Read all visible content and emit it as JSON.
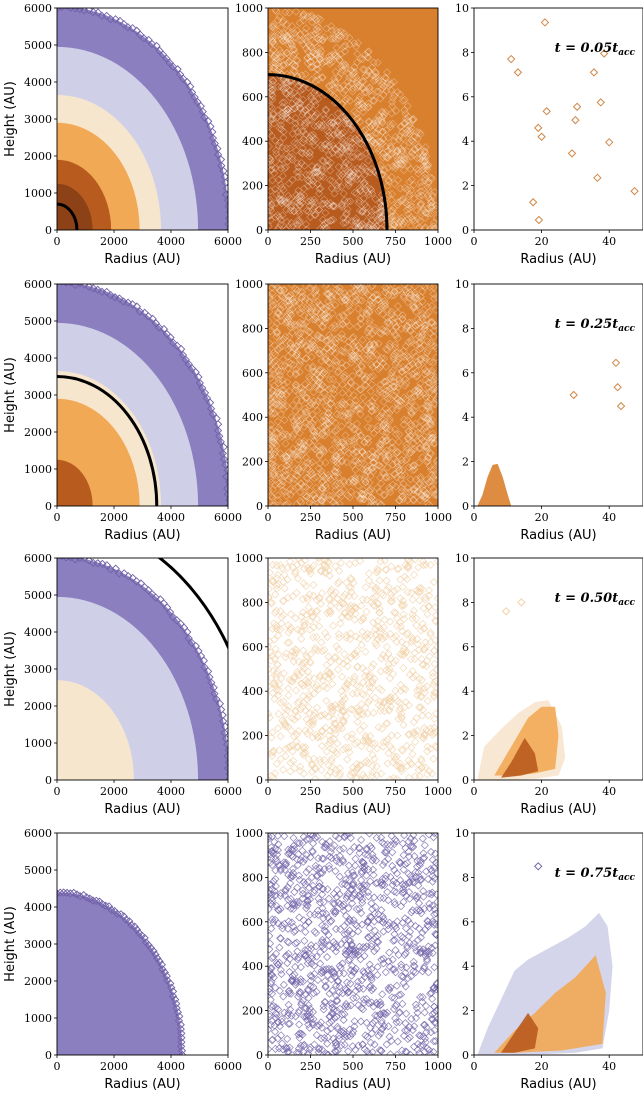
{
  "colors": {
    "lavender_dark": "#7a6bb0",
    "lavender_mid": "#8c7fbf",
    "lavender_light": "#cfd0e8",
    "cream": "#f7e6ce",
    "orange_light": "#f2a955",
    "orange_mid": "#d9802e",
    "brown": "#b85b1e",
    "brown_dark": "#8c4216",
    "marker_orange": "#d08848",
    "marker_purple": "#7061a8",
    "marker_cream": "#f2d2a8",
    "ring": "#000000"
  },
  "chart_data": [
    {
      "id": "r1c1",
      "type": "scatter",
      "title": "",
      "xlabel": "Radius (AU)",
      "ylabel": "Height (AU)",
      "xlim": [
        0,
        6000
      ],
      "ylim": [
        0,
        6000
      ],
      "xticks": [
        0,
        2000,
        4000,
        6000
      ],
      "yticks": [
        0,
        1000,
        2000,
        3000,
        4000,
        5000,
        6000
      ],
      "shells": [
        {
          "outer_radius": 6050,
          "color": "lavender_mid"
        },
        {
          "outer_radius": 4950,
          "color": "lavender_light"
        },
        {
          "outer_radius": 3650,
          "color": "cream"
        },
        {
          "outer_radius": 2900,
          "color": "orange_light"
        },
        {
          "outer_radius": 1900,
          "color": "brown"
        },
        {
          "outer_radius": 1250,
          "color": "brown_dark"
        }
      ],
      "ring_radius": 700,
      "edge_markers_radius": 6050
    },
    {
      "id": "r1c2",
      "type": "scatter",
      "title": "",
      "xlabel": "Radius (AU)",
      "ylabel": "",
      "xlim": [
        0,
        1000
      ],
      "ylim": [
        0,
        1000
      ],
      "xticks": [
        0,
        250,
        500,
        750,
        1000
      ],
      "yticks": [
        0,
        200,
        400,
        600,
        800,
        1000
      ],
      "background": "orange_mid",
      "inner_fill": {
        "radius": 700,
        "color": "brown"
      },
      "cloud_radius": 1000,
      "ring_radius": 700
    },
    {
      "id": "r1c3",
      "type": "scatter",
      "title": "",
      "annotation": "t = 0.05t",
      "annotation_sub": "acc",
      "xlabel": "Radius (AU)",
      "ylabel": "",
      "xlim": [
        0,
        50
      ],
      "ylim": [
        0,
        10
      ],
      "xticks": [
        0,
        20,
        40
      ],
      "yticks": [
        0,
        2,
        4,
        6,
        8,
        10
      ],
      "series": [
        {
          "color": "marker_orange",
          "points": [
            [
              11,
              7.7
            ],
            [
              13,
              7.1
            ],
            [
              17.5,
              1.25
            ],
            [
              19,
              4.6
            ],
            [
              19.2,
              0.45
            ],
            [
              20,
              4.2
            ],
            [
              21,
              9.35
            ],
            [
              21.5,
              5.35
            ],
            [
              29,
              3.45
            ],
            [
              30,
              4.95
            ],
            [
              30.5,
              5.55
            ],
            [
              35.5,
              7.1
            ],
            [
              36.5,
              2.35
            ],
            [
              37.5,
              5.75
            ],
            [
              38.5,
              7.95
            ],
            [
              40,
              3.95
            ],
            [
              47.5,
              1.75
            ]
          ]
        }
      ]
    },
    {
      "id": "r2c1",
      "type": "scatter",
      "title": "",
      "xlabel": "Radius (AU)",
      "ylabel": "Height (AU)",
      "xlim": [
        0,
        6000
      ],
      "ylim": [
        0,
        6000
      ],
      "xticks": [
        0,
        2000,
        4000,
        6000
      ],
      "yticks": [
        0,
        1000,
        2000,
        3000,
        4000,
        5000,
        6000
      ],
      "shells": [
        {
          "outer_radius": 6050,
          "color": "lavender_mid"
        },
        {
          "outer_radius": 4950,
          "color": "lavender_light"
        },
        {
          "outer_radius": 3650,
          "color": "cream"
        },
        {
          "outer_radius": 2900,
          "color": "orange_light"
        },
        {
          "outer_radius": 1250,
          "color": "brown"
        }
      ],
      "ring_radius": 3500,
      "edge_markers_radius": 6050
    },
    {
      "id": "r2c2",
      "type": "scatter",
      "title": "",
      "xlabel": "Radius (AU)",
      "ylabel": "",
      "xlim": [
        0,
        1000
      ],
      "ylim": [
        0,
        1000
      ],
      "xticks": [
        0,
        250,
        500,
        750,
        1000
      ],
      "yticks": [
        0,
        200,
        400,
        600,
        800,
        1000
      ],
      "background": "orange_mid",
      "cloud_radius": 1450
    },
    {
      "id": "r2c3",
      "type": "scatter",
      "title": "",
      "annotation": "t = 0.25t",
      "annotation_sub": "acc",
      "xlabel": "Radius (AU)",
      "ylabel": "",
      "xlim": [
        0,
        50
      ],
      "ylim": [
        0,
        10
      ],
      "xticks": [
        0,
        20,
        40
      ],
      "yticks": [
        0,
        2,
        4,
        6,
        8,
        10
      ],
      "series": [
        {
          "color": "marker_orange",
          "points": [
            [
              29.5,
              5.0
            ],
            [
              42,
              6.45
            ],
            [
              42.5,
              5.35
            ],
            [
              43.5,
              4.5
            ]
          ]
        }
      ],
      "blobs": [
        {
          "color": "orange_mid",
          "points": [
            [
              1,
              0
            ],
            [
              2.5,
              0.5
            ],
            [
              4,
              1.3
            ],
            [
              5.5,
              1.85
            ],
            [
              7,
              1.9
            ],
            [
              8.5,
              1.3
            ],
            [
              10,
              0.5
            ],
            [
              11,
              0
            ]
          ]
        }
      ]
    },
    {
      "id": "r3c1",
      "type": "scatter",
      "title": "",
      "xlabel": "Radius (AU)",
      "ylabel": "Height (AU)",
      "xlim": [
        0,
        6000
      ],
      "ylim": [
        0,
        6000
      ],
      "xticks": [
        0,
        2000,
        4000,
        6000
      ],
      "yticks": [
        0,
        1000,
        2000,
        3000,
        4000,
        5000,
        6000
      ],
      "shells": [
        {
          "outer_radius": 6050,
          "color": "lavender_mid"
        },
        {
          "outer_radius": 4950,
          "color": "lavender_light"
        },
        {
          "outer_radius": 2700,
          "color": "cream"
        }
      ],
      "ring_radius": 7000,
      "edge_markers_radius": 6050
    },
    {
      "id": "r3c2",
      "type": "scatter",
      "title": "",
      "xlabel": "Radius (AU)",
      "ylabel": "",
      "xlim": [
        0,
        1000
      ],
      "ylim": [
        0,
        1000
      ],
      "xticks": [
        0,
        250,
        500,
        750,
        1000
      ],
      "yticks": [
        0,
        200,
        400,
        600,
        800,
        1000
      ],
      "sparse_cloud": {
        "color": "marker_cream",
        "count": 900
      }
    },
    {
      "id": "r3c3",
      "type": "scatter",
      "title": "",
      "annotation": "t = 0.50t",
      "annotation_sub": "acc",
      "xlabel": "Radius (AU)",
      "ylabel": "",
      "xlim": [
        0,
        50
      ],
      "ylim": [
        0,
        10
      ],
      "xticks": [
        0,
        20,
        40
      ],
      "yticks": [
        0,
        2,
        4,
        6,
        8,
        10
      ],
      "series": [
        {
          "color": "marker_cream",
          "points": [
            [
              9.5,
              7.6
            ],
            [
              14,
              8.0
            ]
          ]
        }
      ],
      "blobs": [
        {
          "color": "cream",
          "points": [
            [
              1,
              0
            ],
            [
              3,
              1.5
            ],
            [
              8,
              2.3
            ],
            [
              13,
              3.0
            ],
            [
              18,
              3.5
            ],
            [
              22,
              3.6
            ],
            [
              26,
              2.4
            ],
            [
              27,
              1.0
            ],
            [
              25,
              0.2
            ],
            [
              18,
              0.05
            ],
            [
              8,
              0
            ]
          ]
        },
        {
          "color": "orange_light",
          "points": [
            [
              6,
              0.2
            ],
            [
              11,
              1.5
            ],
            [
              16,
              2.8
            ],
            [
              20,
              3.3
            ],
            [
              24,
              3.3
            ],
            [
              25,
              2.0
            ],
            [
              24,
              0.5
            ],
            [
              18,
              0.3
            ],
            [
              12,
              0.2
            ]
          ]
        },
        {
          "color": "brown",
          "points": [
            [
              8,
              0.1
            ],
            [
              11,
              0.8
            ],
            [
              15,
              1.9
            ],
            [
              18,
              1.2
            ],
            [
              19,
              0.4
            ],
            [
              14,
              0.2
            ]
          ]
        }
      ]
    },
    {
      "id": "r4c1",
      "type": "scatter",
      "title": "",
      "xlabel": "Radius (AU)",
      "ylabel": "Height (AU)",
      "xlim": [
        0,
        6000
      ],
      "ylim": [
        0,
        6000
      ],
      "xticks": [
        0,
        2000,
        4000,
        6000
      ],
      "yticks": [
        0,
        1000,
        2000,
        3000,
        4000,
        5000,
        6000
      ],
      "shells": [
        {
          "outer_radius": 4400,
          "color": "lavender_mid"
        }
      ],
      "edge_markers_radius": 4400
    },
    {
      "id": "r4c2",
      "type": "scatter",
      "title": "",
      "xlabel": "Radius (AU)",
      "ylabel": "",
      "xlim": [
        0,
        1000
      ],
      "ylim": [
        0,
        1000
      ],
      "xticks": [
        0,
        250,
        500,
        750,
        1000
      ],
      "yticks": [
        0,
        200,
        400,
        600,
        800,
        1000
      ],
      "sparse_cloud": {
        "color": "marker_purple",
        "count": 1100
      }
    },
    {
      "id": "r4c3",
      "type": "scatter",
      "title": "",
      "annotation": "t = 0.75t",
      "annotation_sub": "acc",
      "xlabel": "Radius (AU)",
      "ylabel": "",
      "xlim": [
        0,
        50
      ],
      "ylim": [
        0,
        10
      ],
      "xticks": [
        0,
        20,
        40
      ],
      "yticks": [
        0,
        2,
        4,
        6,
        8,
        10
      ],
      "series": [
        {
          "color": "marker_purple",
          "points": [
            [
              19,
              8.5
            ]
          ]
        }
      ],
      "blobs": [
        {
          "color": "lavender_light",
          "points": [
            [
              1,
              0
            ],
            [
              4,
              1.2
            ],
            [
              8,
              2.5
            ],
            [
              12,
              3.8
            ],
            [
              16,
              4.3
            ],
            [
              22,
              4.8
            ],
            [
              28,
              5.3
            ],
            [
              33,
              5.8
            ],
            [
              37,
              6.4
            ],
            [
              39.5,
              5.8
            ],
            [
              41,
              4.0
            ],
            [
              40,
              2.0
            ],
            [
              38,
              0.3
            ],
            [
              30,
              0.1
            ],
            [
              15,
              0
            ]
          ]
        },
        {
          "color": "orange_light",
          "points": [
            [
              6,
              0.1
            ],
            [
              12,
              1.1
            ],
            [
              18,
              1.9
            ],
            [
              24,
              2.8
            ],
            [
              30,
              3.5
            ],
            [
              36,
              4.5
            ],
            [
              39,
              2.8
            ],
            [
              38,
              0.5
            ],
            [
              26,
              0.2
            ],
            [
              12,
              0.1
            ]
          ]
        },
        {
          "color": "brown",
          "points": [
            [
              8,
              0.1
            ],
            [
              12,
              1.0
            ],
            [
              16,
              1.9
            ],
            [
              19,
              1.2
            ],
            [
              18,
              0.3
            ],
            [
              12,
              0.1
            ]
          ]
        }
      ]
    }
  ]
}
